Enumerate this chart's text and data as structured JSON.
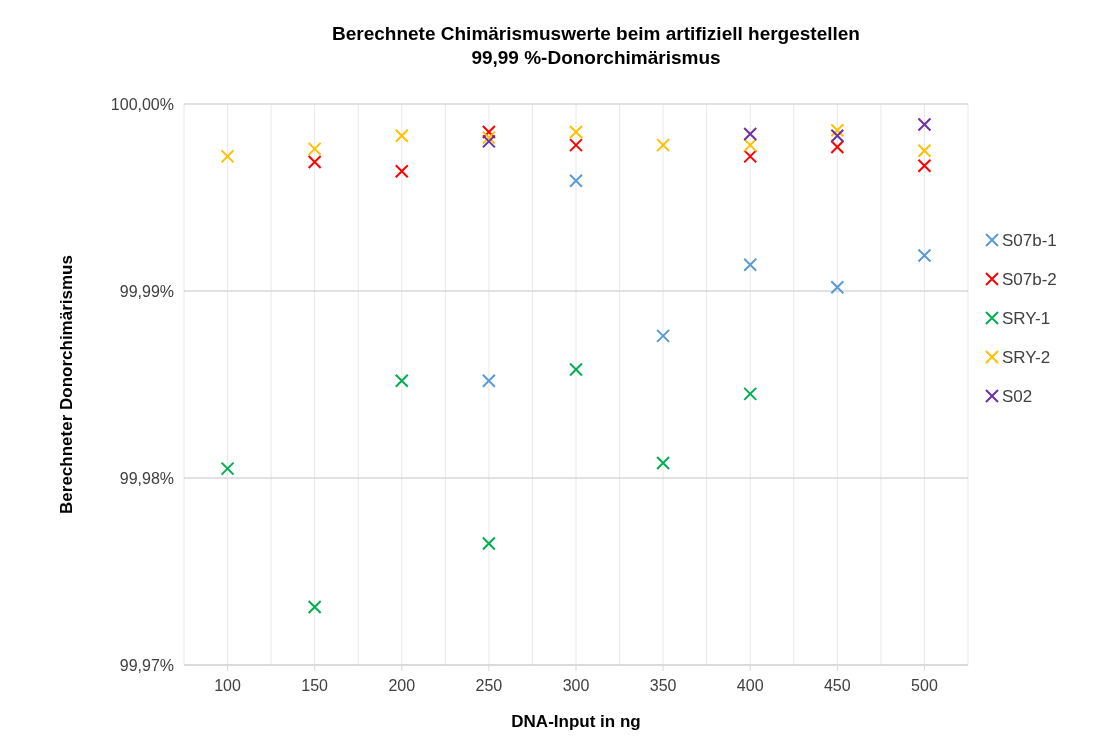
{
  "chart_data": {
    "type": "scatter",
    "title": "Berechnete Chimärismuswerte beim artifiziell hergestellen\n99,99 %-Donorchimärismus",
    "xlabel": "DNA-Input in ng",
    "ylabel": "Berechneter Donorchimärismus",
    "xlim": [
      75,
      525
    ],
    "xticks": [
      100,
      {
        "value": 125,
        "label": null
      },
      150,
      {
        "value": 175,
        "label": null
      },
      200,
      {
        "value": 225,
        "label": null
      },
      250,
      {
        "value": 275,
        "label": null
      },
      300,
      {
        "value": 325,
        "label": null
      },
      350,
      {
        "value": 375,
        "label": null
      },
      400,
      {
        "value": 425,
        "label": null
      },
      450,
      {
        "value": 475,
        "label": null
      },
      500
    ],
    "ylim": [
      99.97,
      100
    ],
    "yticks": [
      {
        "value": 99.97,
        "label": "99,97%"
      },
      {
        "value": 99.98,
        "label": "99,98%"
      },
      {
        "value": 99.99,
        "label": "99,99%"
      },
      {
        "value": 100,
        "label": "100,00%"
      }
    ],
    "grid": true,
    "legend": "right",
    "marker": "cross",
    "series": [
      {
        "name": "S07b-1",
        "color": "#5b9bd5",
        "x": [
          250,
          300,
          350,
          400,
          450,
          500
        ],
        "values": [
          99.9852,
          99.9959,
          99.9876,
          99.9914,
          99.9902,
          99.9919
        ]
      },
      {
        "name": "S07b-2",
        "color": "#ff0000",
        "x": [
          150,
          200,
          250,
          300,
          400,
          450,
          500
        ],
        "values": [
          99.9969,
          99.9964,
          99.9985,
          99.9978,
          99.9972,
          99.9977,
          99.9967
        ]
      },
      {
        "name": "SRY-1",
        "color": "#00b050",
        "x": [
          100,
          150,
          200,
          250,
          300,
          350,
          400
        ],
        "values": [
          99.9805,
          99.9731,
          99.9852,
          99.9765,
          99.9858,
          99.9808,
          99.9845
        ]
      },
      {
        "name": "SRY-2",
        "color": "#ffc000",
        "x": [
          100,
          150,
          200,
          250,
          300,
          350,
          400,
          450,
          500
        ],
        "values": [
          99.9972,
          99.9976,
          99.9983,
          99.9982,
          99.9985,
          99.9978,
          99.9978,
          99.9986,
          99.9975
        ]
      },
      {
        "name": "S02",
        "color": "#7030a0",
        "x": [
          250,
          400,
          450,
          500
        ],
        "values": [
          99.998,
          99.9984,
          99.9983,
          99.9989
        ]
      }
    ]
  }
}
